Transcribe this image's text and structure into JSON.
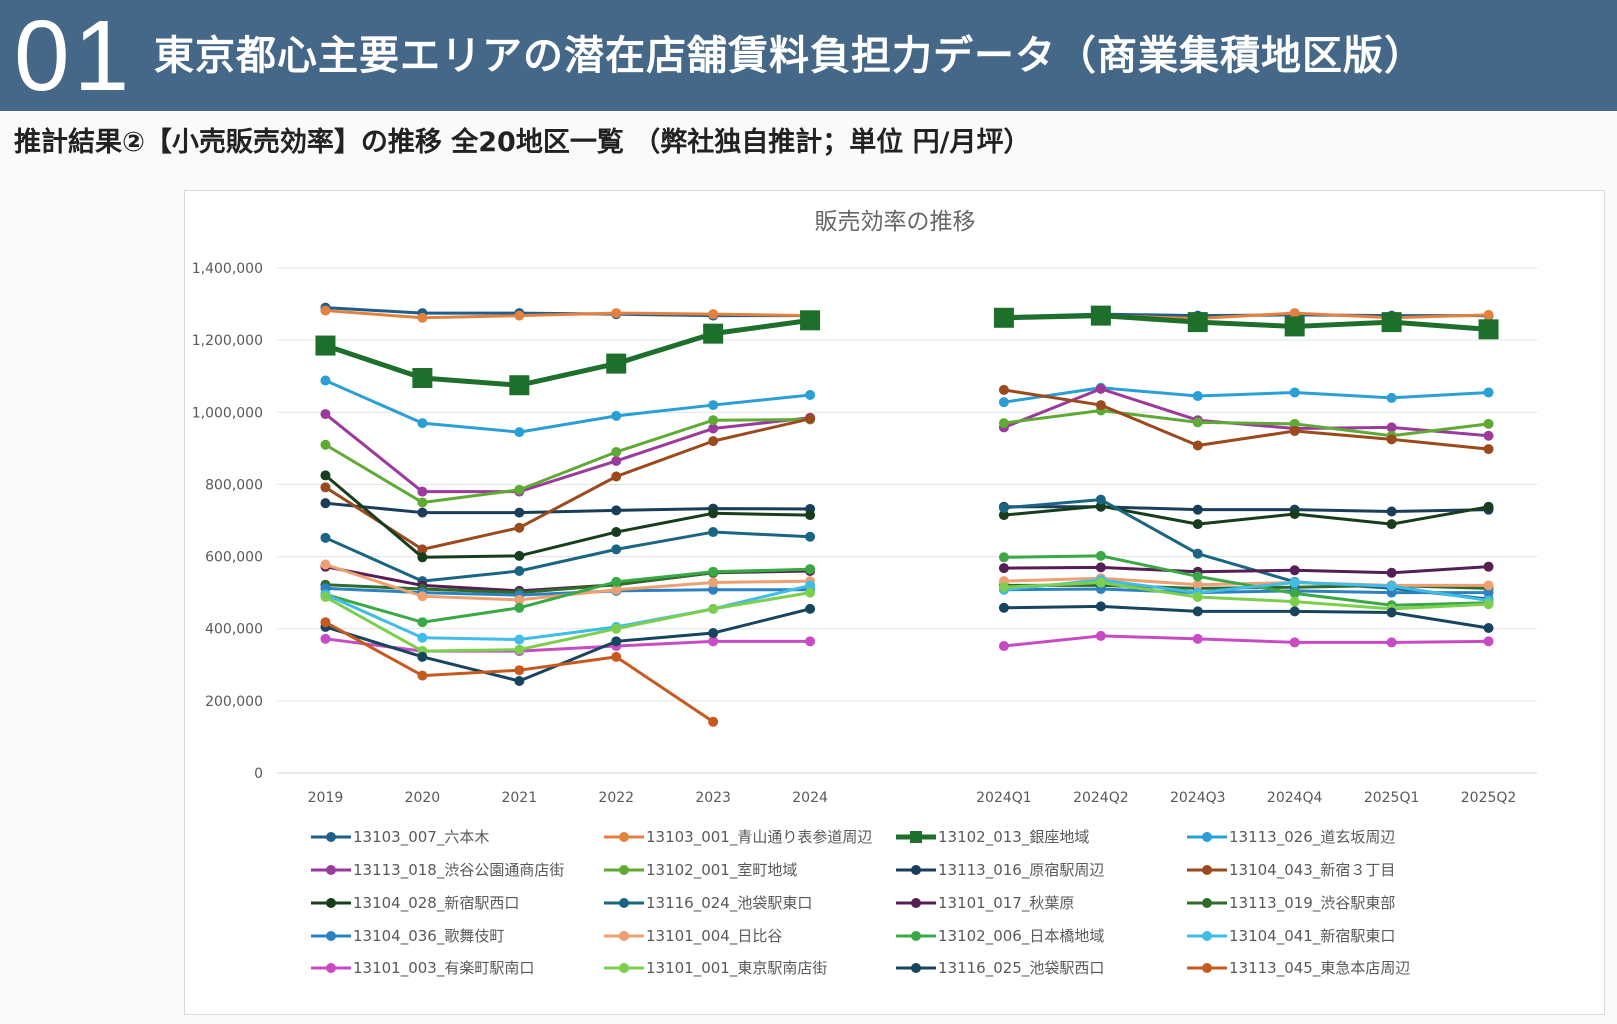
{
  "header": {
    "number": "01",
    "title": "東京都心主要エリアの潜在店舗賃料負担力データ（商業集積地区版）"
  },
  "subtitle": "推計結果②【小売販売効率】の推移 全20地区一覧 （弊社独自推計；単位 円/月坪）",
  "chart_data": {
    "type": "line",
    "title": "販売効率の推移",
    "x": [
      "2019",
      "2020",
      "2021",
      "2022",
      "2023",
      "2024",
      "",
      "2024Q1",
      "2024Q2",
      "2024Q3",
      "2024Q4",
      "2025Q1",
      "2025Q2"
    ],
    "ylim": [
      0,
      1400000
    ],
    "yticks": [
      0,
      200000,
      400000,
      600000,
      800000,
      1000000,
      1200000,
      1400000
    ],
    "ytick_labels": [
      "0",
      "200,000",
      "400,000",
      "600,000",
      "800,000",
      "1,000,000",
      "1,200,000",
      "1,400,000"
    ],
    "grid": true,
    "legend_position": "bottom",
    "series": [
      {
        "name": "13103_007_六本木",
        "color": "#1f5d8a",
        "values": [
          1290000,
          1275000,
          1275000,
          1272000,
          1268000,
          1268000,
          null,
          1265000,
          1272000,
          1268000,
          1270000,
          1268000,
          1268000
        ]
      },
      {
        "name": "13103_001_青山通り表参道周辺",
        "color": "#e3813e",
        "values": [
          1282000,
          1262000,
          1268000,
          1275000,
          1272000,
          1268000,
          null,
          1265000,
          1268000,
          1260000,
          1275000,
          1262000,
          1270000
        ]
      },
      {
        "name": "13102_013_銀座地域",
        "color": "#1e6e2c",
        "marker": "square",
        "values": [
          1185000,
          1095000,
          1075000,
          1135000,
          1218000,
          1255000,
          null,
          1262000,
          1268000,
          1250000,
          1238000,
          1250000,
          1230000
        ]
      },
      {
        "name": "13113_026_道玄坂周辺",
        "color": "#2a9fd6",
        "values": [
          1088000,
          970000,
          945000,
          990000,
          1020000,
          1048000,
          null,
          1028000,
          1068000,
          1045000,
          1055000,
          1040000,
          1055000
        ]
      },
      {
        "name": "13113_018_渋谷公園通商店街",
        "color": "#9b3a9b",
        "values": [
          995000,
          780000,
          780000,
          865000,
          955000,
          985000,
          null,
          958000,
          1065000,
          978000,
          955000,
          958000,
          935000
        ]
      },
      {
        "name": "13102_001_室町地域",
        "color": "#5eaa35",
        "values": [
          910000,
          750000,
          785000,
          890000,
          978000,
          980000,
          null,
          970000,
          1005000,
          972000,
          968000,
          935000,
          968000
        ]
      },
      {
        "name": "13113_016_原宿駅周辺",
        "color": "#1a3e5a",
        "values": [
          748000,
          722000,
          722000,
          728000,
          733000,
          732000,
          null,
          738000,
          738000,
          730000,
          730000,
          725000,
          730000
        ]
      },
      {
        "name": "13104_043_新宿３丁目",
        "color": "#9a4a1c",
        "values": [
          792000,
          620000,
          680000,
          822000,
          920000,
          982000,
          null,
          1062000,
          1020000,
          908000,
          948000,
          925000,
          898000
        ]
      },
      {
        "name": "13104_028_新宿駅西口",
        "color": "#173d1c",
        "values": [
          825000,
          598000,
          602000,
          668000,
          720000,
          715000,
          null,
          715000,
          740000,
          690000,
          718000,
          690000,
          738000
        ]
      },
      {
        "name": "13116_024_池袋駅東口",
        "color": "#1a6582",
        "values": [
          652000,
          532000,
          560000,
          620000,
          668000,
          655000,
          null,
          735000,
          758000,
          608000,
          530000,
          512000,
          482000
        ]
      },
      {
        "name": "13101_017_秋葉原",
        "color": "#551e55",
        "values": [
          572000,
          520000,
          505000,
          522000,
          555000,
          560000,
          null,
          568000,
          570000,
          558000,
          562000,
          555000,
          572000
        ]
      },
      {
        "name": "13113_019_渋谷駅東部",
        "color": "#2f6b2a",
        "values": [
          522000,
          510000,
          500000,
          522000,
          555000,
          565000,
          null,
          520000,
          520000,
          512000,
          515000,
          520000,
          512000
        ]
      },
      {
        "name": "13104_036_歌舞伎町",
        "color": "#2c82c0",
        "values": [
          512000,
          500000,
          493000,
          505000,
          508000,
          508000,
          null,
          508000,
          510000,
          500000,
          505000,
          500000,
          500000
        ]
      },
      {
        "name": "13101_004_日比谷",
        "color": "#eda072",
        "values": [
          578000,
          490000,
          480000,
          508000,
          528000,
          532000,
          null,
          532000,
          540000,
          522000,
          528000,
          520000,
          520000
        ]
      },
      {
        "name": "13102_006_日本橋地域",
        "color": "#3aa945",
        "values": [
          495000,
          418000,
          458000,
          530000,
          558000,
          565000,
          null,
          598000,
          602000,
          545000,
          498000,
          465000,
          472000
        ]
      },
      {
        "name": "13104_041_新宿駅東口",
        "color": "#3fbce8",
        "values": [
          495000,
          375000,
          370000,
          405000,
          455000,
          520000,
          null,
          508000,
          535000,
          500000,
          528000,
          518000,
          478000
        ]
      },
      {
        "name": "13101_003_有楽町駅南口",
        "color": "#c84bc4",
        "values": [
          372000,
          338000,
          338000,
          352000,
          365000,
          365000,
          null,
          352000,
          380000,
          372000,
          362000,
          362000,
          365000
        ]
      },
      {
        "name": "13101_001_東京駅南店街",
        "color": "#7ccf4c",
        "values": [
          488000,
          338000,
          342000,
          400000,
          455000,
          500000,
          null,
          515000,
          528000,
          488000,
          475000,
          455000,
          468000
        ]
      },
      {
        "name": "13116_025_池袋駅西口",
        "color": "#17455f",
        "values": [
          405000,
          322000,
          255000,
          365000,
          388000,
          455000,
          null,
          458000,
          462000,
          448000,
          448000,
          445000,
          402000
        ]
      },
      {
        "name": "13113_045_東急本店周辺",
        "color": "#c65a1e",
        "values": [
          418000,
          270000,
          285000,
          322000,
          142000,
          null,
          null,
          null,
          null,
          null,
          null,
          null,
          null
        ]
      }
    ]
  }
}
